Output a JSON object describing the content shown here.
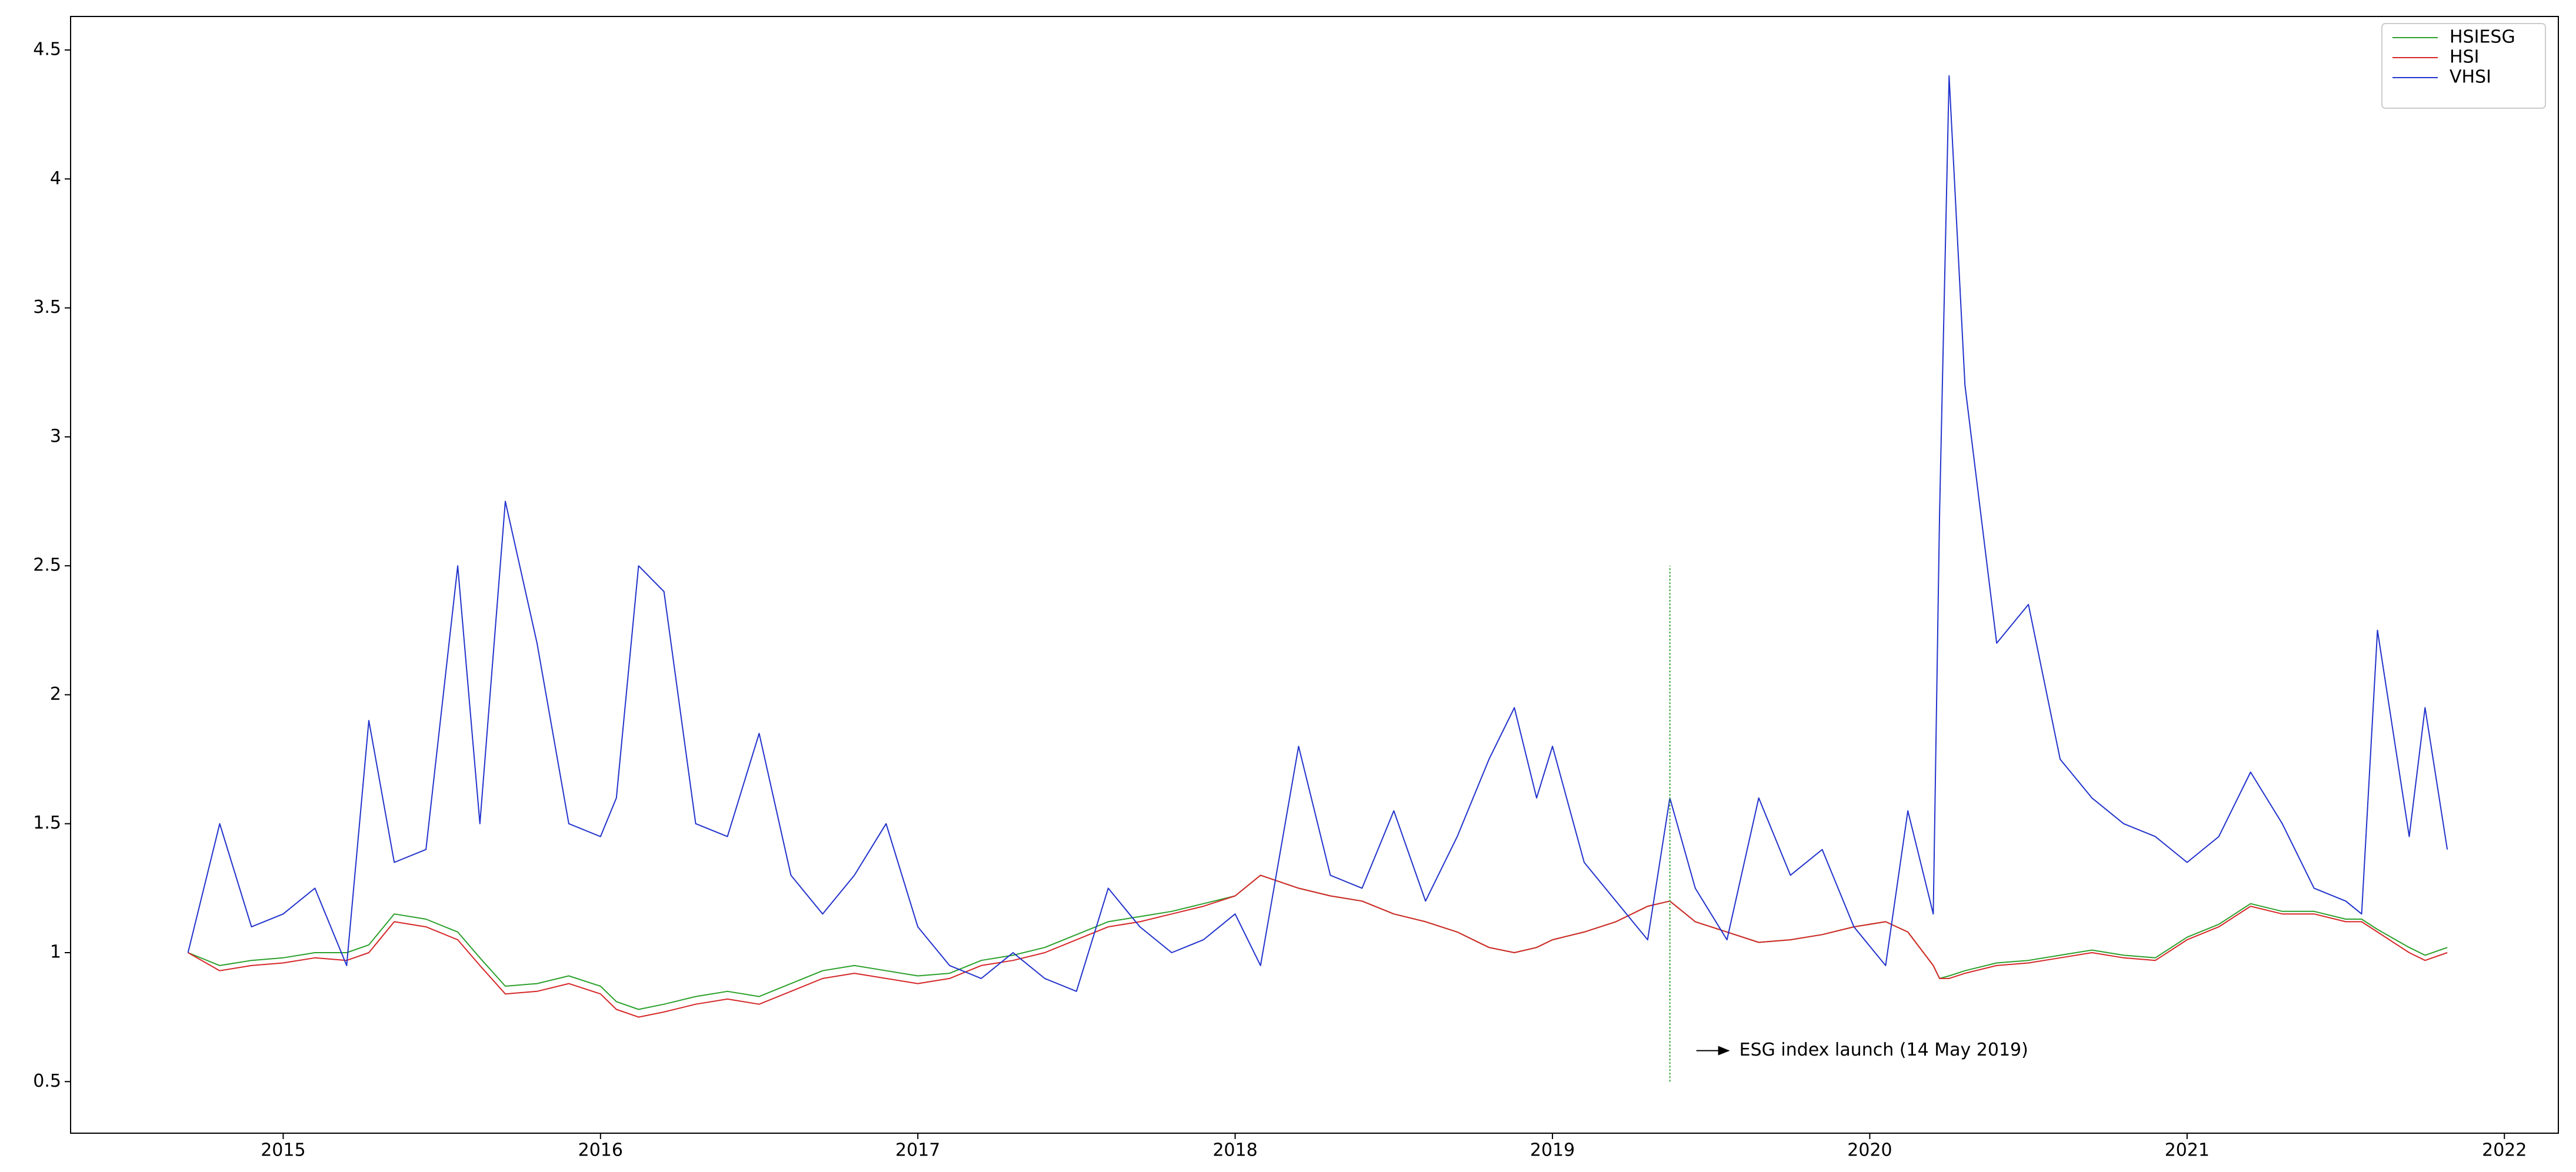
{
  "chart_data": {
    "type": "line",
    "x": [
      2014.7,
      2014.8,
      2014.9,
      2015.0,
      2015.1,
      2015.2,
      2015.27,
      2015.35,
      2015.45,
      2015.55,
      2015.62,
      2015.7,
      2015.8,
      2015.9,
      2016.0,
      2016.05,
      2016.12,
      2016.2,
      2016.3,
      2016.4,
      2016.5,
      2016.6,
      2016.7,
      2016.8,
      2016.9,
      2017.0,
      2017.1,
      2017.2,
      2017.3,
      2017.4,
      2017.5,
      2017.6,
      2017.7,
      2017.8,
      2017.9,
      2018.0,
      2018.08,
      2018.2,
      2018.3,
      2018.4,
      2018.5,
      2018.6,
      2018.7,
      2018.8,
      2018.88,
      2018.95,
      2019.0,
      2019.1,
      2019.2,
      2019.3,
      2019.37,
      2019.45,
      2019.55,
      2019.65,
      2019.75,
      2019.85,
      2019.95,
      2020.05,
      2020.12,
      2020.2,
      2020.22,
      2020.25,
      2020.3,
      2020.4,
      2020.5,
      2020.6,
      2020.7,
      2020.8,
      2020.9,
      2021.0,
      2021.1,
      2021.2,
      2021.3,
      2021.4,
      2021.5,
      2021.55,
      2021.6,
      2021.7,
      2021.75,
      2021.82
    ],
    "series": [
      {
        "name": "HSIESG",
        "color": "#2ca02c",
        "values": [
          1.0,
          0.95,
          0.97,
          0.98,
          1.0,
          1.0,
          1.03,
          1.15,
          1.13,
          1.08,
          0.98,
          0.87,
          0.88,
          0.91,
          0.87,
          0.81,
          0.78,
          0.8,
          0.83,
          0.85,
          0.83,
          0.88,
          0.93,
          0.95,
          0.93,
          0.91,
          0.92,
          0.97,
          0.99,
          1.02,
          1.07,
          1.12,
          1.14,
          1.16,
          1.19,
          1.22,
          1.3,
          1.25,
          1.22,
          1.2,
          1.15,
          1.12,
          1.08,
          1.02,
          1.0,
          1.02,
          1.05,
          1.08,
          1.12,
          1.18,
          1.2,
          1.12,
          1.08,
          1.04,
          1.05,
          1.07,
          1.1,
          1.12,
          1.08,
          0.95,
          0.9,
          0.91,
          0.93,
          0.96,
          0.97,
          0.99,
          1.01,
          0.99,
          0.98,
          1.06,
          1.11,
          1.19,
          1.16,
          1.16,
          1.13,
          1.13,
          1.09,
          1.02,
          0.99,
          1.02
        ]
      },
      {
        "name": "HSI",
        "color": "#d62728",
        "values": [
          1.0,
          0.93,
          0.95,
          0.96,
          0.98,
          0.97,
          1.0,
          1.12,
          1.1,
          1.05,
          0.95,
          0.84,
          0.85,
          0.88,
          0.84,
          0.78,
          0.75,
          0.77,
          0.8,
          0.82,
          0.8,
          0.85,
          0.9,
          0.92,
          0.9,
          0.88,
          0.9,
          0.95,
          0.97,
          1.0,
          1.05,
          1.1,
          1.12,
          1.15,
          1.18,
          1.22,
          1.3,
          1.25,
          1.22,
          1.2,
          1.15,
          1.12,
          1.08,
          1.02,
          1.0,
          1.02,
          1.05,
          1.08,
          1.12,
          1.18,
          1.2,
          1.12,
          1.08,
          1.04,
          1.05,
          1.07,
          1.1,
          1.12,
          1.08,
          0.95,
          0.9,
          0.9,
          0.92,
          0.95,
          0.96,
          0.98,
          1.0,
          0.98,
          0.97,
          1.05,
          1.1,
          1.18,
          1.15,
          1.15,
          1.12,
          1.12,
          1.08,
          1.0,
          0.97,
          1.0
        ]
      },
      {
        "name": "VHSI",
        "color": "#2233cc",
        "values": [
          1.0,
          1.5,
          1.1,
          1.15,
          1.25,
          0.95,
          1.9,
          1.35,
          1.4,
          2.5,
          1.5,
          2.75,
          2.2,
          1.5,
          1.45,
          1.6,
          2.5,
          2.4,
          1.5,
          1.45,
          1.85,
          1.3,
          1.15,
          1.3,
          1.5,
          1.1,
          0.95,
          0.9,
          1.0,
          0.9,
          0.85,
          1.25,
          1.1,
          1.0,
          1.05,
          1.15,
          0.95,
          1.8,
          1.3,
          1.25,
          1.55,
          1.2,
          1.45,
          1.75,
          1.95,
          1.6,
          1.8,
          1.35,
          1.2,
          1.05,
          1.6,
          1.25,
          1.05,
          1.6,
          1.3,
          1.4,
          1.1,
          0.95,
          1.55,
          1.15,
          2.7,
          4.4,
          3.2,
          2.2,
          2.35,
          1.75,
          1.6,
          1.5,
          1.45,
          1.35,
          1.45,
          1.7,
          1.5,
          1.25,
          1.2,
          1.15,
          2.25,
          1.45,
          1.95,
          1.4
        ]
      }
    ],
    "xlim": [
      2014.33,
      2022.17
    ],
    "xticks": [
      2015,
      2016,
      2017,
      2018,
      2019,
      2020,
      2021,
      2022
    ],
    "ylim": [
      0.3,
      4.63
    ],
    "yticks": [
      0.5,
      1.0,
      1.5,
      2.0,
      2.5,
      3.0,
      3.5,
      4.0,
      4.5
    ],
    "annotation": {
      "text": "ESG index launch (14 May 2019)",
      "x": 2019.37,
      "ymin": 0.5,
      "ymax": 2.5,
      "color": "#2ca02c"
    },
    "legend": "upper right"
  }
}
